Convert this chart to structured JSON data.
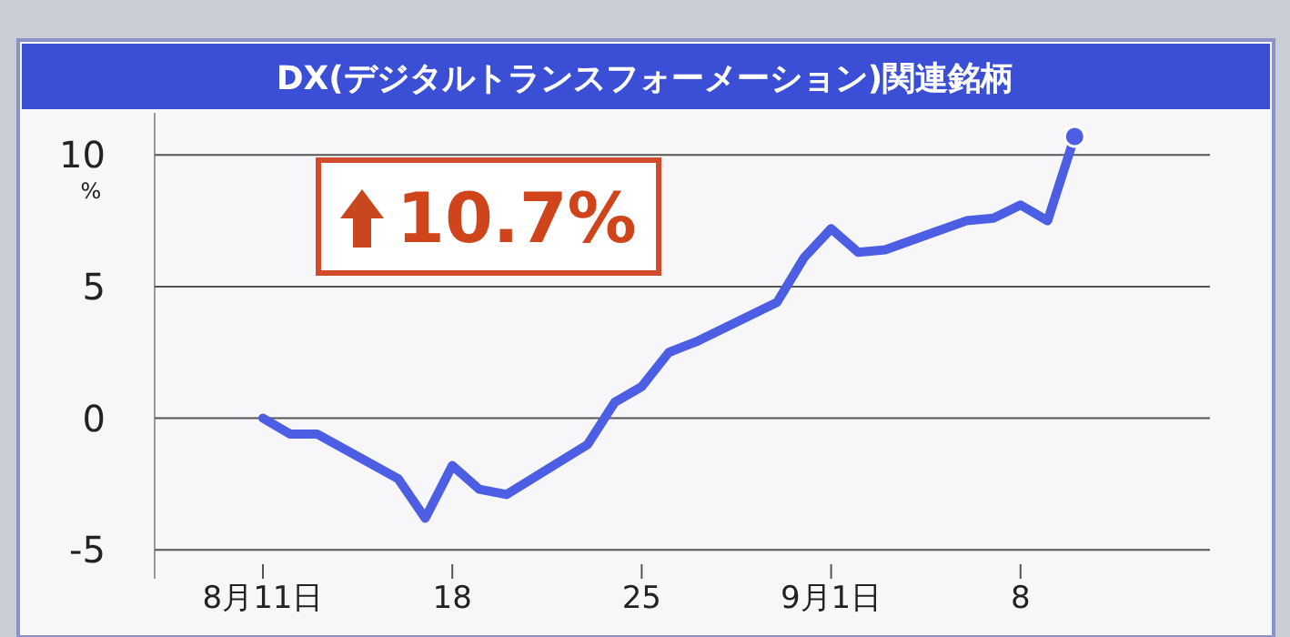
{
  "chart_data": {
    "type": "line",
    "title": "DX(デジタルトランスフォーメーション)関連銘柄",
    "ylabel": "%",
    "annotations": [
      "10.7%"
    ],
    "series": [
      {
        "type": "line",
        "color": "#4b5ee4",
        "marker": "none",
        "x": [
          "--08-11",
          "--08-12",
          "--08-13",
          "--08-16",
          "--08-17",
          "--08-18",
          "--08-19",
          "--08-20",
          "--08-23",
          "--08-24",
          "--08-25",
          "--08-26",
          "--08-27",
          "--08-30",
          "--08-31",
          "--09-01",
          "--09-02",
          "--09-03",
          "--09-06",
          "--09-07",
          "--09-08",
          "--09-09",
          "--09-10"
        ],
        "values": [
          0,
          -0.6,
          -0.6,
          -2.3,
          -3.8,
          -1.8,
          -2.7,
          -2.9,
          -1.0,
          0.6,
          1.2,
          2.5,
          2.9,
          4.4,
          6.1,
          7.2,
          6.3,
          6.4,
          7.5,
          7.6,
          8.1,
          7.5,
          10.7
        ]
      },
      {
        "type": "scatter",
        "color": "#4b5ee4",
        "marker": "circle",
        "x": [
          "--09-10"
        ],
        "values": [
          10.7
        ]
      }
    ],
    "xlim": [
      "--08-07",
      "--09-15"
    ],
    "xticks": [
      {
        "value": "--08-11",
        "label": "8月11日"
      },
      {
        "value": "--08-18",
        "label": "18"
      },
      {
        "value": "--08-25",
        "label": "25"
      },
      {
        "value": "--09-01",
        "label": "9月1日"
      },
      {
        "value": "--09-08",
        "label": "8"
      }
    ],
    "ylim": [
      -6.1,
      11.6
    ],
    "yticks": [
      -5,
      0,
      5,
      10
    ],
    "grid": "y"
  }
}
